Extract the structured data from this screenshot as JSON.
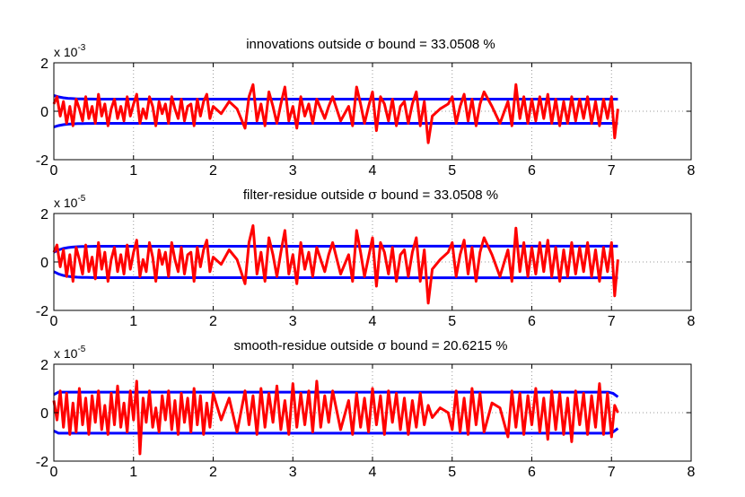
{
  "figure": {
    "background": "#ffffff",
    "colors": {
      "residual": "#ff0000",
      "bound": "#0000ff",
      "axes": "#000000",
      "grid": "#9a9a9a"
    }
  },
  "chart_data": [
    {
      "type": "line",
      "title": "innovations outside σ bound = 33.0508 %",
      "title_prefix": "innovations outside",
      "sigma": "σ",
      "title_suffix": "bound = 33.0508 %",
      "exponent_base": "x 10",
      "exponent": "-3",
      "scale": 0.001,
      "xlim": [
        0,
        8
      ],
      "ylim": [
        -2,
        2
      ],
      "xticks": [
        0,
        1,
        2,
        3,
        4,
        5,
        6,
        7,
        8
      ],
      "yticks": [
        -2,
        0,
        2
      ],
      "grid": "dotted",
      "t_end": 7.08,
      "bound": {
        "start": 0.65,
        "steady": 0.5,
        "profile": "rise"
      },
      "series": [
        {
          "role": "residual",
          "color": "#ff0000",
          "x": [
            0.0,
            0.04,
            0.08,
            0.12,
            0.16,
            0.2,
            0.24,
            0.28,
            0.32,
            0.36,
            0.4,
            0.44,
            0.48,
            0.52,
            0.56,
            0.6,
            0.64,
            0.68,
            0.72,
            0.76,
            0.8,
            0.84,
            0.88,
            0.92,
            0.96,
            1.0,
            1.04,
            1.08,
            1.12,
            1.16,
            1.2,
            1.24,
            1.28,
            1.32,
            1.36,
            1.4,
            1.44,
            1.48,
            1.52,
            1.56,
            1.6,
            1.64,
            1.68,
            1.72,
            1.76,
            1.8,
            1.84,
            1.88,
            1.92,
            1.96,
            2.0,
            2.1,
            2.2,
            2.3,
            2.4,
            2.45,
            2.5,
            2.55,
            2.6,
            2.65,
            2.7,
            2.75,
            2.8,
            2.85,
            2.9,
            2.95,
            3.0,
            3.05,
            3.1,
            3.15,
            3.2,
            3.25,
            3.3,
            3.35,
            3.4,
            3.45,
            3.5,
            3.6,
            3.7,
            3.75,
            3.8,
            3.85,
            3.9,
            3.95,
            4.0,
            4.05,
            4.1,
            4.15,
            4.2,
            4.25,
            4.3,
            4.35,
            4.4,
            4.45,
            4.5,
            4.55,
            4.6,
            4.65,
            4.7,
            4.75,
            4.85,
            4.95,
            5.0,
            5.05,
            5.1,
            5.15,
            5.2,
            5.25,
            5.3,
            5.35,
            5.4,
            5.5,
            5.6,
            5.7,
            5.75,
            5.8,
            5.85,
            5.9,
            5.95,
            6.0,
            6.05,
            6.1,
            6.15,
            6.2,
            6.25,
            6.3,
            6.35,
            6.4,
            6.45,
            6.5,
            6.55,
            6.6,
            6.65,
            6.7,
            6.75,
            6.8,
            6.85,
            6.9,
            6.95,
            7.0,
            7.04,
            7.08
          ],
          "y": [
            0.3,
            0.6,
            -0.2,
            0.4,
            -0.5,
            0.2,
            -0.6,
            0.5,
            0.1,
            -0.4,
            0.6,
            -0.3,
            0.2,
            -0.5,
            0.7,
            -0.2,
            0.3,
            -0.6,
            0.1,
            0.5,
            -0.3,
            0.2,
            -0.4,
            0.6,
            -0.2,
            0.3,
            0.7,
            -0.5,
            0.1,
            -0.3,
            0.6,
            0.2,
            -0.6,
            0.4,
            -0.1,
            0.3,
            -0.5,
            0.6,
            0.1,
            -0.3,
            0.5,
            -0.4,
            0.2,
            0.3,
            -0.6,
            0.5,
            -0.2,
            0.4,
            0.7,
            -0.3,
            0.2,
            -0.1,
            0.4,
            0.1,
            -0.7,
            0.6,
            1.1,
            -0.4,
            0.3,
            -0.6,
            0.8,
            0.2,
            -0.5,
            0.3,
            1.0,
            -0.4,
            0.2,
            -0.7,
            0.6,
            -0.2,
            0.3,
            -0.5,
            0.5,
            0.1,
            -0.3,
            0.2,
            0.6,
            -0.4,
            0.2,
            -0.6,
            1.0,
            0.3,
            -0.5,
            0.2,
            0.8,
            -0.8,
            0.6,
            0.3,
            -0.4,
            0.5,
            -0.6,
            0.2,
            0.4,
            -0.5,
            0.3,
            0.8,
            -0.6,
            0.4,
            -1.3,
            -0.2,
            0.1,
            0.3,
            0.6,
            -0.5,
            0.2,
            0.7,
            -0.4,
            0.5,
            -0.6,
            0.3,
            0.8,
            0.2,
            -0.5,
            0.4,
            -0.6,
            1.1,
            -0.3,
            0.6,
            -0.5,
            0.5,
            -0.4,
            0.6,
            -0.3,
            0.7,
            -0.5,
            0.5,
            -0.6,
            0.4,
            -0.5,
            0.6,
            -0.4,
            0.5,
            -0.3,
            0.6,
            -0.5,
            0.4,
            -0.6,
            0.5,
            -0.3,
            0.6,
            -1.1,
            0.1
          ]
        }
      ]
    },
    {
      "type": "line",
      "title": "filter-residue outside σ bound = 33.0508 %",
      "title_prefix": "filter-residue outside",
      "sigma": "σ",
      "title_suffix": "bound = 33.0508 %",
      "exponent_base": "x 10",
      "exponent": "-5",
      "scale": 1e-05,
      "xlim": [
        0,
        8
      ],
      "ylim": [
        -2,
        2
      ],
      "xticks": [
        0,
        1,
        2,
        3,
        4,
        5,
        6,
        7,
        8
      ],
      "yticks": [
        -2,
        0,
        2
      ],
      "grid": "dotted",
      "t_end": 7.08,
      "bound": {
        "start": 0.4,
        "steady": 0.65,
        "profile": "rise"
      },
      "series": [
        {
          "role": "residual",
          "color": "#ff0000",
          "x": [
            0.0,
            0.04,
            0.08,
            0.12,
            0.16,
            0.2,
            0.24,
            0.28,
            0.32,
            0.36,
            0.4,
            0.44,
            0.48,
            0.52,
            0.56,
            0.6,
            0.64,
            0.68,
            0.72,
            0.76,
            0.8,
            0.84,
            0.88,
            0.92,
            0.96,
            1.0,
            1.04,
            1.08,
            1.12,
            1.16,
            1.2,
            1.24,
            1.28,
            1.32,
            1.36,
            1.4,
            1.44,
            1.48,
            1.52,
            1.56,
            1.6,
            1.64,
            1.68,
            1.72,
            1.76,
            1.8,
            1.84,
            1.88,
            1.92,
            1.96,
            2.0,
            2.1,
            2.2,
            2.3,
            2.4,
            2.45,
            2.5,
            2.55,
            2.6,
            2.65,
            2.7,
            2.75,
            2.8,
            2.85,
            2.9,
            2.95,
            3.0,
            3.05,
            3.1,
            3.15,
            3.2,
            3.25,
            3.3,
            3.35,
            3.4,
            3.45,
            3.5,
            3.6,
            3.7,
            3.75,
            3.8,
            3.85,
            3.9,
            3.95,
            4.0,
            4.05,
            4.1,
            4.15,
            4.2,
            4.25,
            4.3,
            4.35,
            4.4,
            4.45,
            4.5,
            4.55,
            4.6,
            4.65,
            4.7,
            4.75,
            4.85,
            4.95,
            5.0,
            5.05,
            5.1,
            5.15,
            5.2,
            5.25,
            5.3,
            5.35,
            5.4,
            5.5,
            5.6,
            5.7,
            5.75,
            5.8,
            5.85,
            5.9,
            5.95,
            6.0,
            6.05,
            6.1,
            6.15,
            6.2,
            6.25,
            6.3,
            6.35,
            6.4,
            6.45,
            6.5,
            6.55,
            6.6,
            6.65,
            6.7,
            6.75,
            6.8,
            6.85,
            6.9,
            6.95,
            7.0,
            7.04,
            7.08
          ],
          "y": [
            0.4,
            0.7,
            -0.2,
            0.5,
            -0.6,
            0.3,
            -0.8,
            0.6,
            0.1,
            -0.5,
            0.7,
            -0.4,
            0.2,
            -0.7,
            0.8,
            -0.3,
            0.4,
            -0.8,
            0.1,
            0.6,
            -0.4,
            0.3,
            -0.5,
            0.7,
            -0.3,
            0.4,
            0.9,
            -0.6,
            0.1,
            -0.4,
            0.8,
            0.2,
            -0.8,
            0.5,
            -0.1,
            0.4,
            -0.6,
            0.8,
            0.1,
            -0.4,
            0.6,
            -0.5,
            0.3,
            0.4,
            -0.8,
            0.6,
            -0.2,
            0.5,
            0.9,
            -0.4,
            0.2,
            -0.1,
            0.5,
            0.1,
            -0.9,
            0.8,
            1.5,
            -0.5,
            0.4,
            -0.8,
            1.0,
            0.3,
            -0.6,
            0.4,
            1.3,
            -0.5,
            0.3,
            -0.9,
            0.8,
            -0.3,
            0.4,
            -0.6,
            0.6,
            0.1,
            -0.4,
            0.3,
            0.8,
            -0.5,
            0.3,
            -0.8,
            1.3,
            0.4,
            -0.6,
            0.2,
            1.0,
            -1.0,
            0.8,
            0.4,
            -0.5,
            0.6,
            -0.8,
            0.3,
            0.5,
            -0.6,
            0.4,
            1.0,
            -0.8,
            0.5,
            -1.7,
            -0.3,
            0.1,
            0.4,
            0.8,
            -0.6,
            0.3,
            0.9,
            -0.5,
            0.6,
            -0.8,
            0.4,
            1.0,
            0.3,
            -0.6,
            0.5,
            -0.8,
            1.4,
            -0.4,
            0.8,
            -0.6,
            0.6,
            -0.5,
            0.8,
            -0.4,
            0.9,
            -0.6,
            0.6,
            -0.8,
            0.5,
            -0.6,
            0.8,
            -0.5,
            0.6,
            -0.4,
            0.8,
            -0.6,
            0.5,
            -0.8,
            0.6,
            -0.4,
            0.8,
            -1.4,
            0.1
          ]
        }
      ]
    },
    {
      "type": "line",
      "title": "smooth-residue outside σ bound = 20.6215 %",
      "title_prefix": "smooth-residue outside",
      "sigma": "σ",
      "title_suffix": "bound = 20.6215 %",
      "exponent_base": "x 10",
      "exponent": "-5",
      "scale": 1e-05,
      "xlim": [
        0,
        8
      ],
      "ylim": [
        -2,
        2
      ],
      "xticks": [
        0,
        1,
        2,
        3,
        4,
        5,
        6,
        7,
        8
      ],
      "yticks": [
        -2,
        0,
        2
      ],
      "grid": "dotted",
      "t_end": 7.08,
      "bound": {
        "start": 0.75,
        "steady": 0.85,
        "end": 0.65,
        "profile": "flat-dip"
      },
      "series": [
        {
          "role": "residual",
          "color": "#ff0000",
          "x": [
            0.0,
            0.04,
            0.08,
            0.12,
            0.16,
            0.2,
            0.24,
            0.28,
            0.32,
            0.36,
            0.4,
            0.44,
            0.48,
            0.52,
            0.56,
            0.6,
            0.64,
            0.68,
            0.72,
            0.76,
            0.8,
            0.84,
            0.88,
            0.92,
            0.96,
            1.0,
            1.04,
            1.08,
            1.12,
            1.16,
            1.2,
            1.24,
            1.28,
            1.32,
            1.36,
            1.4,
            1.44,
            1.48,
            1.52,
            1.56,
            1.6,
            1.64,
            1.68,
            1.72,
            1.76,
            1.8,
            1.84,
            1.88,
            1.92,
            1.96,
            2.0,
            2.1,
            2.2,
            2.3,
            2.4,
            2.45,
            2.5,
            2.55,
            2.6,
            2.65,
            2.7,
            2.75,
            2.8,
            2.85,
            2.9,
            2.95,
            3.0,
            3.05,
            3.1,
            3.15,
            3.2,
            3.25,
            3.3,
            3.35,
            3.4,
            3.45,
            3.5,
            3.6,
            3.7,
            3.75,
            3.8,
            3.85,
            3.9,
            3.95,
            4.0,
            4.05,
            4.1,
            4.15,
            4.2,
            4.25,
            4.3,
            4.35,
            4.4,
            4.45,
            4.5,
            4.55,
            4.6,
            4.65,
            4.7,
            4.75,
            4.85,
            4.95,
            5.0,
            5.05,
            5.1,
            5.15,
            5.2,
            5.25,
            5.3,
            5.35,
            5.4,
            5.5,
            5.6,
            5.7,
            5.75,
            5.8,
            5.85,
            5.9,
            5.95,
            6.0,
            6.05,
            6.1,
            6.15,
            6.2,
            6.25,
            6.3,
            6.35,
            6.4,
            6.45,
            6.5,
            6.55,
            6.6,
            6.65,
            6.7,
            6.75,
            6.8,
            6.85,
            6.9,
            6.95,
            7.0,
            7.04,
            7.08
          ],
          "y": [
            0.5,
            -0.3,
            0.9,
            -0.6,
            0.8,
            -0.9,
            0.4,
            -0.8,
            1.0,
            -0.5,
            0.6,
            -0.9,
            0.7,
            -0.4,
            0.9,
            -0.7,
            0.3,
            -0.9,
            0.8,
            -0.5,
            1.1,
            -0.6,
            0.4,
            -0.8,
            0.9,
            -0.3,
            1.3,
            -1.7,
            0.6,
            -0.4,
            0.9,
            -0.6,
            0.2,
            -0.8,
            0.7,
            -0.3,
            0.9,
            -0.7,
            0.5,
            -0.9,
            0.8,
            -0.4,
            0.6,
            -0.8,
            1.0,
            -0.5,
            0.7,
            -0.9,
            0.4,
            -0.6,
            0.8,
            -0.3,
            0.6,
            -0.8,
            0.9,
            -0.5,
            0.7,
            -0.9,
            1.0,
            -0.6,
            0.8,
            -0.4,
            1.1,
            -0.7,
            0.5,
            -0.9,
            1.2,
            -0.6,
            0.8,
            -0.5,
            0.9,
            -0.8,
            1.3,
            -0.6,
            0.7,
            -0.4,
            0.9,
            -0.7,
            0.5,
            -0.9,
            0.8,
            -0.6,
            0.6,
            -0.8,
            1.0,
            -0.5,
            0.7,
            -0.9,
            0.9,
            -0.4,
            0.8,
            -0.7,
            0.6,
            -0.9,
            0.5,
            -0.6,
            0.8,
            -0.5,
            0.3,
            -0.2,
            0.2,
            0.0,
            -0.7,
            0.9,
            -0.8,
            0.6,
            -0.9,
            1.0,
            -0.5,
            0.8,
            -0.8,
            0.4,
            0.2,
            -1.0,
            0.9,
            -0.6,
            0.8,
            -0.9,
            0.7,
            -0.5,
            1.0,
            -0.8,
            0.6,
            -1.1,
            0.9,
            -0.7,
            0.8,
            -0.9,
            0.6,
            -1.2,
            0.9,
            -0.5,
            0.8,
            -0.9,
            0.7,
            -0.6,
            1.2,
            -0.9,
            0.8,
            -1.0,
            0.3,
            0.0
          ]
        }
      ]
    }
  ]
}
